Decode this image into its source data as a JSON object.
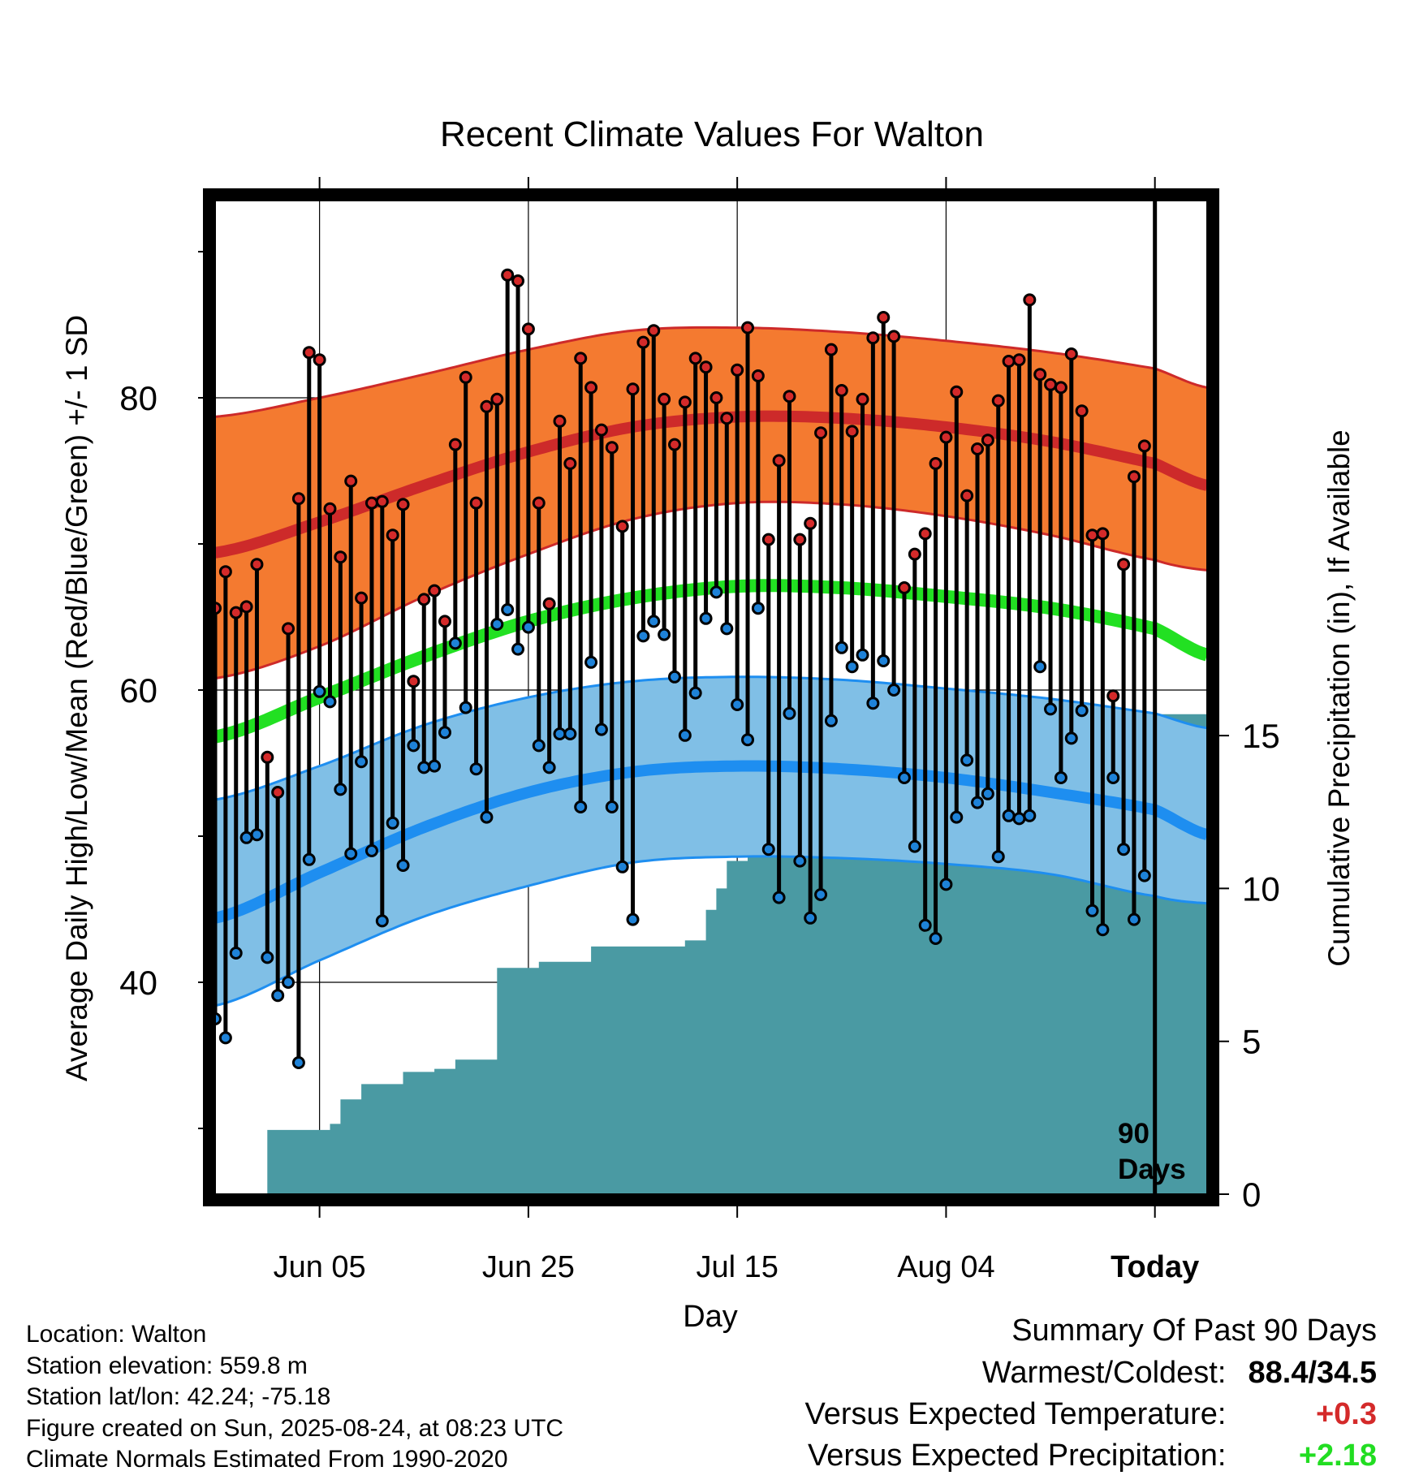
{
  "chart_data": {
    "type": "line",
    "title": "Recent Climate Values For Walton",
    "xlabel": "Day",
    "ylabel": "Average Daily High/Low/Mean (Red/Blue/Green) +/- 1 SD",
    "y2label": "Cumulative Precipitation (in), If Available",
    "x_start": "2025-05-26",
    "x_end": "2025-08-29",
    "today": "2025-08-24",
    "ylim": [
      25.5,
      93.5
    ],
    "y2lim": [
      0,
      32.5
    ],
    "yticks": [
      40,
      60,
      80
    ],
    "yminor_ticks": [
      30,
      50,
      70,
      90
    ],
    "y2ticks": [
      0,
      5,
      10,
      15
    ],
    "xticks": [
      {
        "date": "2025-06-05",
        "label": "Jun 05"
      },
      {
        "date": "2025-06-25",
        "label": "Jun 25"
      },
      {
        "date": "2025-07-15",
        "label": "Jul 15"
      },
      {
        "date": "2025-08-04",
        "label": "Aug 04"
      },
      {
        "date": "2025-08-24",
        "label": "Today"
      }
    ],
    "grid": true,
    "period_label": [
      "90",
      "Days"
    ],
    "normals": {
      "dates": [
        "2025-05-26",
        "2025-06-05",
        "2025-06-15",
        "2025-06-25",
        "2025-07-05",
        "2025-07-15",
        "2025-07-25",
        "2025-08-04",
        "2025-08-14",
        "2025-08-24",
        "2025-08-29"
      ],
      "high_mean": [
        69.4,
        71.5,
        74.0,
        76.3,
        78.0,
        78.7,
        78.6,
        78.0,
        77.0,
        75.5,
        74.0
      ],
      "high_upper": [
        78.7,
        80.0,
        81.6,
        83.3,
        84.6,
        84.8,
        84.5,
        83.9,
        83.1,
        82.0,
        80.7
      ],
      "high_lower": [
        60.8,
        63.0,
        66.4,
        69.3,
        71.7,
        72.8,
        72.7,
        71.9,
        70.6,
        68.9,
        68.2
      ],
      "mean": [
        56.8,
        59.5,
        62.3,
        64.7,
        66.3,
        67.1,
        67.0,
        66.4,
        65.6,
        64.2,
        62.4
      ],
      "low_mean": [
        44.4,
        47.5,
        50.6,
        53.0,
        54.4,
        54.8,
        54.6,
        54.0,
        53.0,
        51.8,
        50.1
      ],
      "low_upper": [
        52.5,
        54.8,
        57.6,
        59.5,
        60.6,
        60.9,
        60.7,
        60.1,
        59.4,
        58.4,
        57.4
      ],
      "low_lower": [
        38.4,
        41.5,
        44.5,
        46.6,
        48.2,
        48.6,
        48.5,
        48.1,
        47.4,
        45.9,
        45.4
      ]
    },
    "series": [
      {
        "name": "High",
        "values": [
          65.6,
          68.1,
          65.3,
          65.7,
          68.6,
          55.4,
          53.0,
          64.2,
          73.1,
          83.1,
          82.6,
          72.4,
          69.1,
          74.3,
          66.3,
          72.8,
          72.9,
          70.6,
          72.7,
          60.6,
          66.2,
          66.8,
          64.7,
          76.8,
          81.4,
          72.8,
          79.4,
          79.9,
          88.4,
          88.0,
          84.7,
          72.8,
          65.9,
          78.4,
          75.5,
          82.7,
          80.7,
          77.8,
          76.6,
          71.2,
          80.6,
          83.8,
          84.6,
          79.9,
          76.8,
          79.7,
          82.7,
          82.1,
          80.0,
          78.6,
          81.9,
          84.8,
          81.5,
          70.3,
          75.7,
          80.1,
          70.3,
          71.4,
          77.6,
          83.3,
          80.5,
          77.7,
          79.9,
          84.1,
          85.5,
          84.2,
          67.0,
          69.3,
          70.7,
          75.5,
          77.3,
          80.4,
          73.3,
          76.5,
          77.1,
          79.8,
          82.5,
          82.6,
          86.7,
          81.6,
          80.9,
          80.7,
          83.0,
          79.1,
          70.6,
          70.7,
          59.6,
          68.6,
          74.6,
          76.7
        ]
      },
      {
        "name": "Low",
        "values": [
          37.5,
          36.2,
          42.0,
          49.9,
          50.1,
          41.7,
          39.1,
          40.0,
          34.5,
          48.4,
          59.9,
          59.2,
          53.2,
          48.8,
          55.1,
          49.0,
          44.2,
          50.9,
          48.0,
          56.2,
          54.7,
          54.8,
          57.1,
          63.2,
          58.8,
          54.6,
          51.3,
          64.5,
          65.5,
          62.8,
          64.3,
          56.2,
          54.7,
          57.0,
          57.0,
          52.0,
          61.9,
          57.3,
          52.0,
          47.9,
          44.3,
          63.7,
          64.7,
          63.8,
          60.9,
          56.9,
          59.8,
          64.9,
          66.7,
          64.2,
          59.0,
          56.6,
          65.6,
          49.1,
          45.8,
          58.4,
          48.3,
          44.4,
          46.0,
          57.9,
          62.9,
          61.6,
          62.4,
          59.1,
          62.0,
          60.0,
          54.0,
          49.3,
          43.9,
          43.0,
          46.7,
          51.3,
          55.2,
          52.3,
          52.9,
          48.6,
          51.4,
          51.2,
          51.4,
          61.6,
          58.7,
          54.0,
          56.7,
          58.6,
          44.9,
          43.6,
          54.0,
          49.1,
          44.3,
          47.3
        ]
      },
      {
        "name": "Cumulative Precipitation",
        "values": [
          0,
          0,
          0,
          0,
          0,
          2.1,
          2.1,
          2.1,
          2.1,
          2.1,
          2.1,
          2.3,
          3.1,
          3.1,
          3.6,
          3.6,
          3.6,
          3.6,
          4.0,
          4.0,
          4.0,
          4.1,
          4.1,
          4.4,
          4.4,
          4.4,
          4.4,
          7.4,
          7.4,
          7.4,
          7.4,
          7.6,
          7.6,
          7.6,
          7.6,
          7.6,
          8.1,
          8.1,
          8.1,
          8.1,
          8.1,
          8.1,
          8.1,
          8.1,
          8.1,
          8.3,
          8.3,
          9.3,
          10.0,
          10.9,
          10.9,
          11.3,
          11.4,
          11.4,
          11.4,
          11.4,
          11.4,
          11.4,
          11.4,
          11.4,
          11.4,
          11.6,
          11.6,
          11.6,
          12.0,
          12.0,
          12.0,
          12.3,
          12.3,
          12.3,
          12.3,
          12.3,
          12.3,
          12.4,
          12.4,
          12.4,
          12.4,
          12.4,
          12.9,
          14.2,
          14.2,
          14.2,
          14.2,
          14.2,
          14.2,
          15.7,
          15.7,
          15.7,
          15.7,
          15.7
        ]
      }
    ]
  },
  "info": {
    "location": "Location: Walton",
    "elevation": "Station elevation: 559.8 m",
    "latlon": "Station lat/lon: 42.24; -75.18",
    "created": "Figure created on Sun, 2025-08-24, at 08:23 UTC",
    "normals_note": "Climate Normals Estimated From 1990-2020"
  },
  "summary": {
    "title": "Summary Of Past 90 Days",
    "warm_cold_label": "Warmest/Coldest:",
    "warm_cold_value": "88.4/34.5",
    "temp_label": "Versus Expected Temperature:",
    "temp_value": "+0.3",
    "precip_label": "Versus Expected Precipitation:",
    "precip_value": "+2.18",
    "temp_color": "#d42a2a",
    "precip_color": "#22dd22"
  },
  "colors": {
    "high_band": "#f47a30",
    "high_line": "#cd2a2a",
    "low_band": "#80bfe6",
    "low_line": "#1e8ef0",
    "mean_line": "#22e022",
    "precip_fill": "#4a9aa3",
    "high_point": "#d42a2a",
    "low_point": "#1e82d8"
  }
}
